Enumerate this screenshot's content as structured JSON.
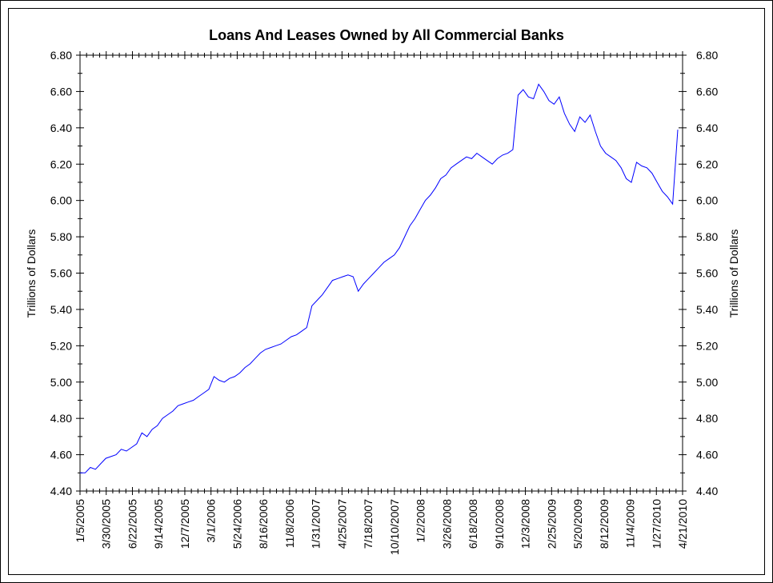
{
  "chart_data": {
    "type": "line",
    "title": "Loans And Leases Owned by All Commercial Banks",
    "ylabel_left": "Trillions of Dollars",
    "ylabel_right": "Trillions of Dollars",
    "ylim": [
      4.4,
      6.8
    ],
    "y_ticks": [
      "4.40",
      "4.60",
      "4.80",
      "5.00",
      "5.20",
      "5.40",
      "5.60",
      "5.80",
      "6.00",
      "6.20",
      "6.40",
      "6.60",
      "6.80"
    ],
    "x_tick_labels": [
      "1/5/2005",
      "3/30/2005",
      "6/22/2005",
      "9/14/2005",
      "12/7/2005",
      "3/1/2006",
      "5/24/2006",
      "8/16/2006",
      "11/8/2006",
      "1/31/2007",
      "4/25/2007",
      "7/18/2007",
      "10/10/2007",
      "1/2/2008",
      "3/26/2008",
      "6/18/2008",
      "9/10/2008",
      "12/3/2008",
      "2/25/2009",
      "5/20/2009",
      "8/12/2009",
      "11/4/2009",
      "1/27/2010",
      "4/21/2010"
    ],
    "grid": false,
    "line_color": "#0000ff",
    "series": [
      {
        "x_start": "1/5/2005",
        "x_end": "4/21/2010",
        "values": [
          4.5,
          4.5,
          4.53,
          4.52,
          4.55,
          4.58,
          4.59,
          4.6,
          4.63,
          4.62,
          4.64,
          4.66,
          4.72,
          4.7,
          4.74,
          4.76,
          4.8,
          4.82,
          4.84,
          4.87,
          4.88,
          4.89,
          4.9,
          4.92,
          4.94,
          4.96,
          5.03,
          5.01,
          5.0,
          5.02,
          5.03,
          5.05,
          5.08,
          5.1,
          5.13,
          5.16,
          5.18,
          5.19,
          5.2,
          5.21,
          5.23,
          5.25,
          5.26,
          5.28,
          5.3,
          5.42,
          5.45,
          5.48,
          5.52,
          5.56,
          5.57,
          5.58,
          5.59,
          5.58,
          5.5,
          5.54,
          5.57,
          5.6,
          5.63,
          5.66,
          5.68,
          5.7,
          5.74,
          5.8,
          5.86,
          5.9,
          5.95,
          6.0,
          6.03,
          6.07,
          6.12,
          6.14,
          6.18,
          6.2,
          6.22,
          6.24,
          6.23,
          6.26,
          6.24,
          6.22,
          6.2,
          6.23,
          6.25,
          6.26,
          6.28,
          6.58,
          6.61,
          6.57,
          6.56,
          6.64,
          6.6,
          6.55,
          6.53,
          6.57,
          6.48,
          6.42,
          6.38,
          6.46,
          6.43,
          6.47,
          6.38,
          6.3,
          6.26,
          6.24,
          6.22,
          6.18,
          6.12,
          6.1,
          6.21,
          6.19,
          6.18,
          6.15,
          6.1,
          6.05,
          6.02,
          5.98,
          6.39
        ]
      }
    ]
  }
}
